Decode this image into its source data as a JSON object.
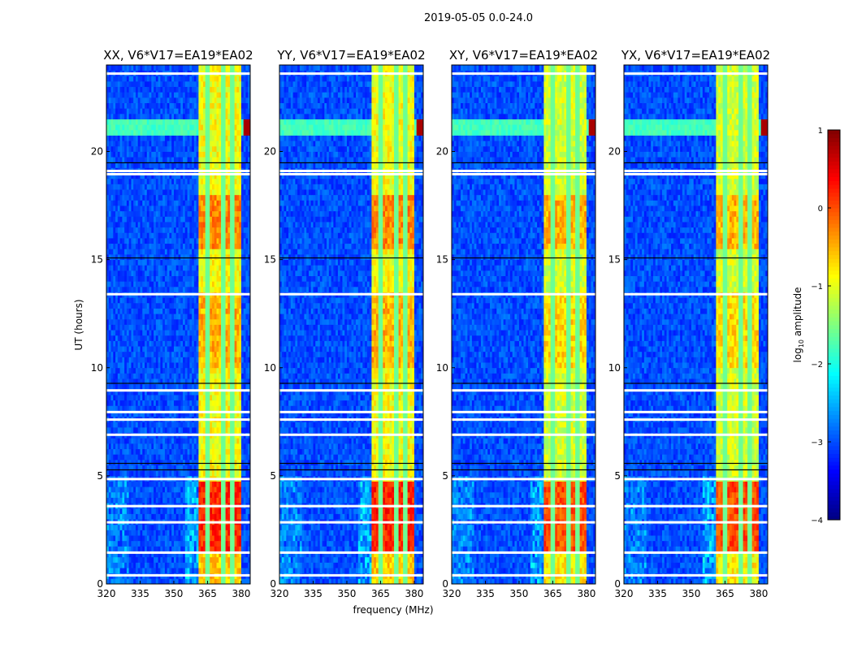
{
  "chart_data": {
    "type": "heatmap",
    "title": "2019-05-05 0.0-24.0",
    "xlabel": "frequency (MHz)",
    "ylabel": "UT (hours)",
    "xlim": [
      320,
      384
    ],
    "ylim": [
      0,
      24
    ],
    "xticks": [
      "320",
      "335",
      "350",
      "365",
      "380"
    ],
    "yticks": [
      "0",
      "5",
      "10",
      "15",
      "20"
    ],
    "panels": [
      {
        "title": "XX, V6*V17=EA19*EA02"
      },
      {
        "title": "YY, V6*V17=EA19*EA02"
      },
      {
        "title": "XY, V6*V17=EA19*EA02"
      },
      {
        "title": "YX, V6*V17=EA19*EA02"
      }
    ],
    "colorbar": {
      "label": "log10 amplitude",
      "label_main": "log",
      "label_sub": "10",
      "label_rest": " amplitude",
      "range": [
        -4,
        1
      ],
      "ticks": [
        "1",
        "0",
        "−1",
        "−2",
        "−3",
        "−4"
      ],
      "colormap": "jet"
    },
    "background_level": -3.0,
    "signal_band_mhz": [
      360.5,
      380
    ],
    "band_gaps_mhz": [
      365,
      372,
      376
    ],
    "band_levels": [
      {
        "hours": [
          0,
          1.5
        ],
        "level": -0.6
      },
      {
        "hours": [
          1.5,
          4.7
        ],
        "level": 0.2
      },
      {
        "hours": [
          4.7,
          10
        ],
        "level": -0.9
      },
      {
        "hours": [
          10,
          13.4
        ],
        "level": -0.5
      },
      {
        "hours": [
          13.4,
          15.5
        ],
        "level": -0.9
      },
      {
        "hours": [
          15.5,
          18
        ],
        "level": -0.3
      },
      {
        "hours": [
          18,
          24
        ],
        "level": -0.9
      }
    ],
    "rfi_rows": [
      {
        "hours": [
          20.8,
          21.5
        ],
        "level": -1.8,
        "edge_level": 0.8
      }
    ],
    "flagged_hours": [
      0.4,
      1.45,
      2.85,
      3.6,
      4.85,
      6.9,
      7.6,
      7.95,
      8.95,
      13.4,
      18.95,
      19.1,
      23.6
    ]
  }
}
